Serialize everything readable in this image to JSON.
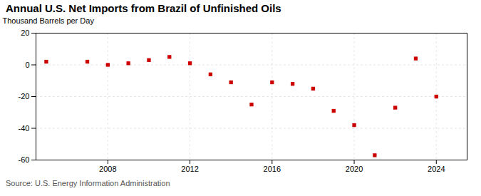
{
  "chart_data": {
    "type": "scatter",
    "title": "Annual U.S. Net Imports from Brazil of Unfinished Oils",
    "ylabel": "Thousand Barrels per Day",
    "source": "Source: U.S. Energy Information Administration",
    "x": [
      2005,
      2007,
      2008,
      2009,
      2010,
      2011,
      2012,
      2013,
      2014,
      2015,
      2016,
      2017,
      2018,
      2019,
      2020,
      2021,
      2022,
      2023,
      2024
    ],
    "values": [
      2,
      2,
      0,
      1,
      3,
      5,
      1,
      -6,
      -11,
      -25,
      -11,
      -12,
      -15,
      -29,
      -38,
      -57,
      -27,
      4,
      -20
    ],
    "color": "#cc0000",
    "marker": "square",
    "xlim": [
      2004.5,
      2025.5
    ],
    "xticks": [
      2008,
      2012,
      2016,
      2020,
      2024
    ],
    "ylim": [
      -60,
      20
    ],
    "yticks": [
      -60,
      -40,
      -20,
      0,
      20
    ],
    "grid": true
  }
}
